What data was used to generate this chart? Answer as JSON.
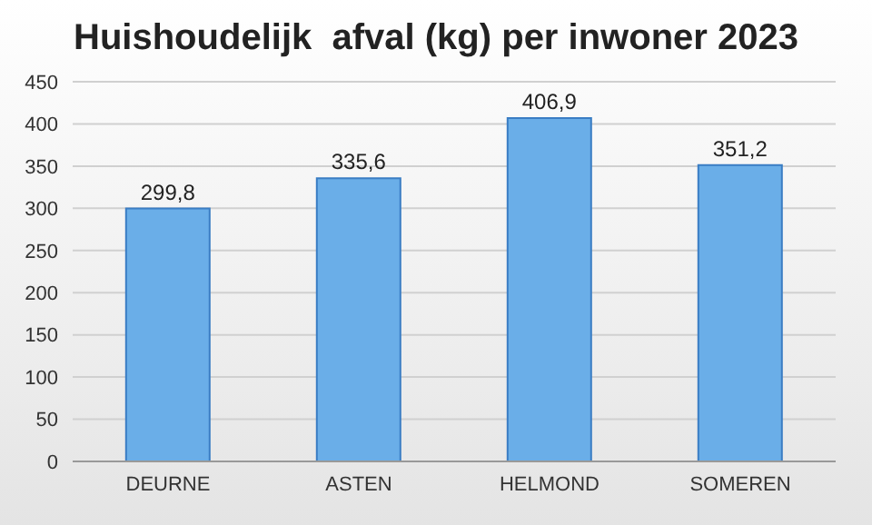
{
  "chart_data": {
    "type": "bar",
    "title": "Huishoudelijk  afval (kg) per inwoner 2023",
    "categories": [
      "DEURNE",
      "ASTEN",
      "HELMOND",
      "SOMEREN"
    ],
    "values": [
      299.8,
      335.6,
      406.9,
      351.2
    ],
    "value_labels": [
      "299,8",
      "335,6",
      "406,9",
      "351,2"
    ],
    "color": "#6aaee8",
    "ylim": [
      0,
      450
    ],
    "yticks": [
      0,
      50,
      100,
      150,
      200,
      250,
      300,
      350,
      400,
      450
    ],
    "grid": "y"
  }
}
